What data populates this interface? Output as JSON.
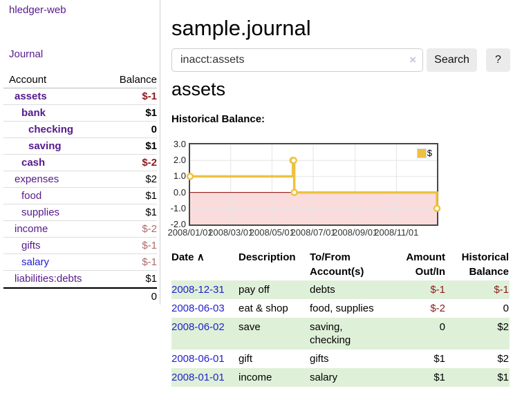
{
  "app": {
    "title": "hledger-web"
  },
  "colors": {
    "link_purple": "#551a8b",
    "link_blue": "#2222cc",
    "negative_strong": "#8b1a1a",
    "negative_soft": "#b06868",
    "row_green": "#dff0d8",
    "chart_line": "#edc240",
    "chart_zero_line": "#8b0000",
    "chart_below_zero_fill": "#fbdcdc"
  },
  "sidebar": {
    "journal_label": "Journal",
    "accounts": {
      "header_account": "Account",
      "header_balance": "Balance",
      "rows": [
        {
          "name": "assets",
          "balance": "$-1"
        },
        {
          "name": "bank",
          "balance": "$1"
        },
        {
          "name": "checking",
          "balance": "0"
        },
        {
          "name": "saving",
          "balance": "$1"
        },
        {
          "name": "cash",
          "balance": "$-2"
        },
        {
          "name": "expenses",
          "balance": "$2"
        },
        {
          "name": "food",
          "balance": "$1"
        },
        {
          "name": "supplies",
          "balance": "$1"
        },
        {
          "name": "income",
          "balance": "$-2"
        },
        {
          "name": "gifts",
          "balance": "$-1"
        },
        {
          "name": "salary",
          "balance": "$-1"
        },
        {
          "name": "liabilities:debts",
          "balance": "$1"
        }
      ],
      "total": "0"
    }
  },
  "main": {
    "page_title": "sample.journal",
    "search": {
      "value": "inacct:assets",
      "clear_icon": "×",
      "button_label": "Search",
      "help_label": "?"
    },
    "account_heading": "assets",
    "section_label": "Historical Balance:"
  },
  "chart_data": {
    "type": "line",
    "title": "Historical Balance:",
    "step": true,
    "series": [
      {
        "name": "$",
        "color": "#edc240",
        "points": [
          [
            "2008-01-01",
            1
          ],
          [
            "2008-06-01",
            2
          ],
          [
            "2008-06-02",
            2
          ],
          [
            "2008-06-03",
            0
          ],
          [
            "2008-12-31",
            -1
          ]
        ]
      }
    ],
    "x_range": [
      "2008-01-01",
      "2008-12-31"
    ],
    "ylim": [
      -2,
      3
    ],
    "y_ticks": [
      {
        "label": "3.0",
        "value": 3
      },
      {
        "label": "2.0",
        "value": 2
      },
      {
        "label": "1.0",
        "value": 1
      },
      {
        "label": "0.0",
        "value": 0
      },
      {
        "label": "-1.0",
        "value": -1
      },
      {
        "label": "-2.0",
        "value": -2
      }
    ],
    "y_grid": [
      2,
      1,
      -1
    ],
    "x_ticks": [
      "2008/01/01",
      "2008/03/01",
      "2008/05/01",
      "2008/07/01",
      "2008/09/01",
      "2008/11/01"
    ],
    "x_tick_dates": [
      "2008-01-01",
      "2008-03-01",
      "2008-05-01",
      "2008-07-01",
      "2008-09-01",
      "2008-11-01"
    ],
    "grid": true,
    "legend_position": "top-right",
    "zero_line_color": "#8b0000",
    "below_zero_fill": "#fbdcdc"
  },
  "register": {
    "headers": {
      "date": "Date",
      "sort_arrow": "∧",
      "description": "Description",
      "tofrom_line1": "To/From",
      "tofrom_line2": "Account(s)",
      "amount_line1": "Amount",
      "amount_line2": "Out/In",
      "balance_line1": "Historical",
      "balance_line2": "Balance"
    },
    "rows": [
      {
        "date": "2008-12-31",
        "description": "pay off",
        "accounts": "debts",
        "amount": "$-1",
        "balance": "$-1"
      },
      {
        "date": "2008-06-03",
        "description": "eat & shop",
        "accounts": "food, supplies",
        "amount": "$-2",
        "balance": "0"
      },
      {
        "date": "2008-06-02",
        "description": "save",
        "accounts": "saving, checking",
        "amount": "0",
        "balance": "$2"
      },
      {
        "date": "2008-06-01",
        "description": "gift",
        "accounts": "gifts",
        "amount": "$1",
        "balance": "$2"
      },
      {
        "date": "2008-01-01",
        "description": "income",
        "accounts": "salary",
        "amount": "$1",
        "balance": "$1"
      }
    ]
  }
}
